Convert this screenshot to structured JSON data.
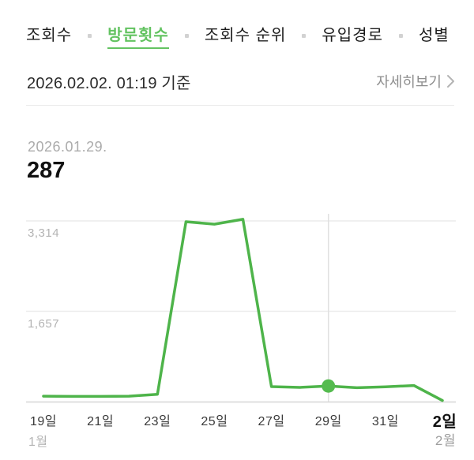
{
  "tabs": {
    "items": [
      {
        "label": "조회수",
        "active": false
      },
      {
        "label": "방문횟수",
        "active": true
      },
      {
        "label": "조회수 순위",
        "active": false
      },
      {
        "label": "유입경로",
        "active": false
      },
      {
        "label": "성별",
        "active": false
      }
    ]
  },
  "header": {
    "timestamp": "2026.02.02. 01:19 기준",
    "detail_link": "자세히보기"
  },
  "summary": {
    "date": "2026.01.29.",
    "value": "287"
  },
  "colors": {
    "accent_green": "#63c361",
    "line_green": "#4eb44a",
    "dot_green": "#55bb4f",
    "gridline": "#ececec",
    "axis": "#d6d6d6",
    "vertical_marker": "#e0e0e0",
    "muted_text": "#b3b3b3"
  },
  "chart_data": {
    "type": "line",
    "title": "방문횟수 (visit count) daily trend",
    "x": [
      "1월 19일",
      "20일",
      "21일",
      "22일",
      "23일",
      "24일",
      "25일",
      "26일",
      "27일",
      "28일",
      "29일",
      "30일",
      "31일",
      "2월 1일",
      "2월 2일"
    ],
    "values": [
      100,
      95,
      95,
      100,
      135,
      3300,
      3255,
      3345,
      275,
      260,
      287,
      255,
      270,
      295,
      20
    ],
    "ylim": [
      0,
      3460
    ],
    "y_gridlines": [
      1657,
      3314
    ],
    "y_tick_labels": [
      "1,657",
      "3,314"
    ],
    "x_tick_labels": [
      "19일",
      "21일",
      "23일",
      "25일",
      "27일",
      "29일",
      "31일",
      "2일"
    ],
    "month_labels": {
      "left": "1월",
      "right": "2월"
    },
    "highlight": {
      "index": 10,
      "x_label": "29일",
      "value": 287
    },
    "legend": "none",
    "grid": "horizontal"
  }
}
